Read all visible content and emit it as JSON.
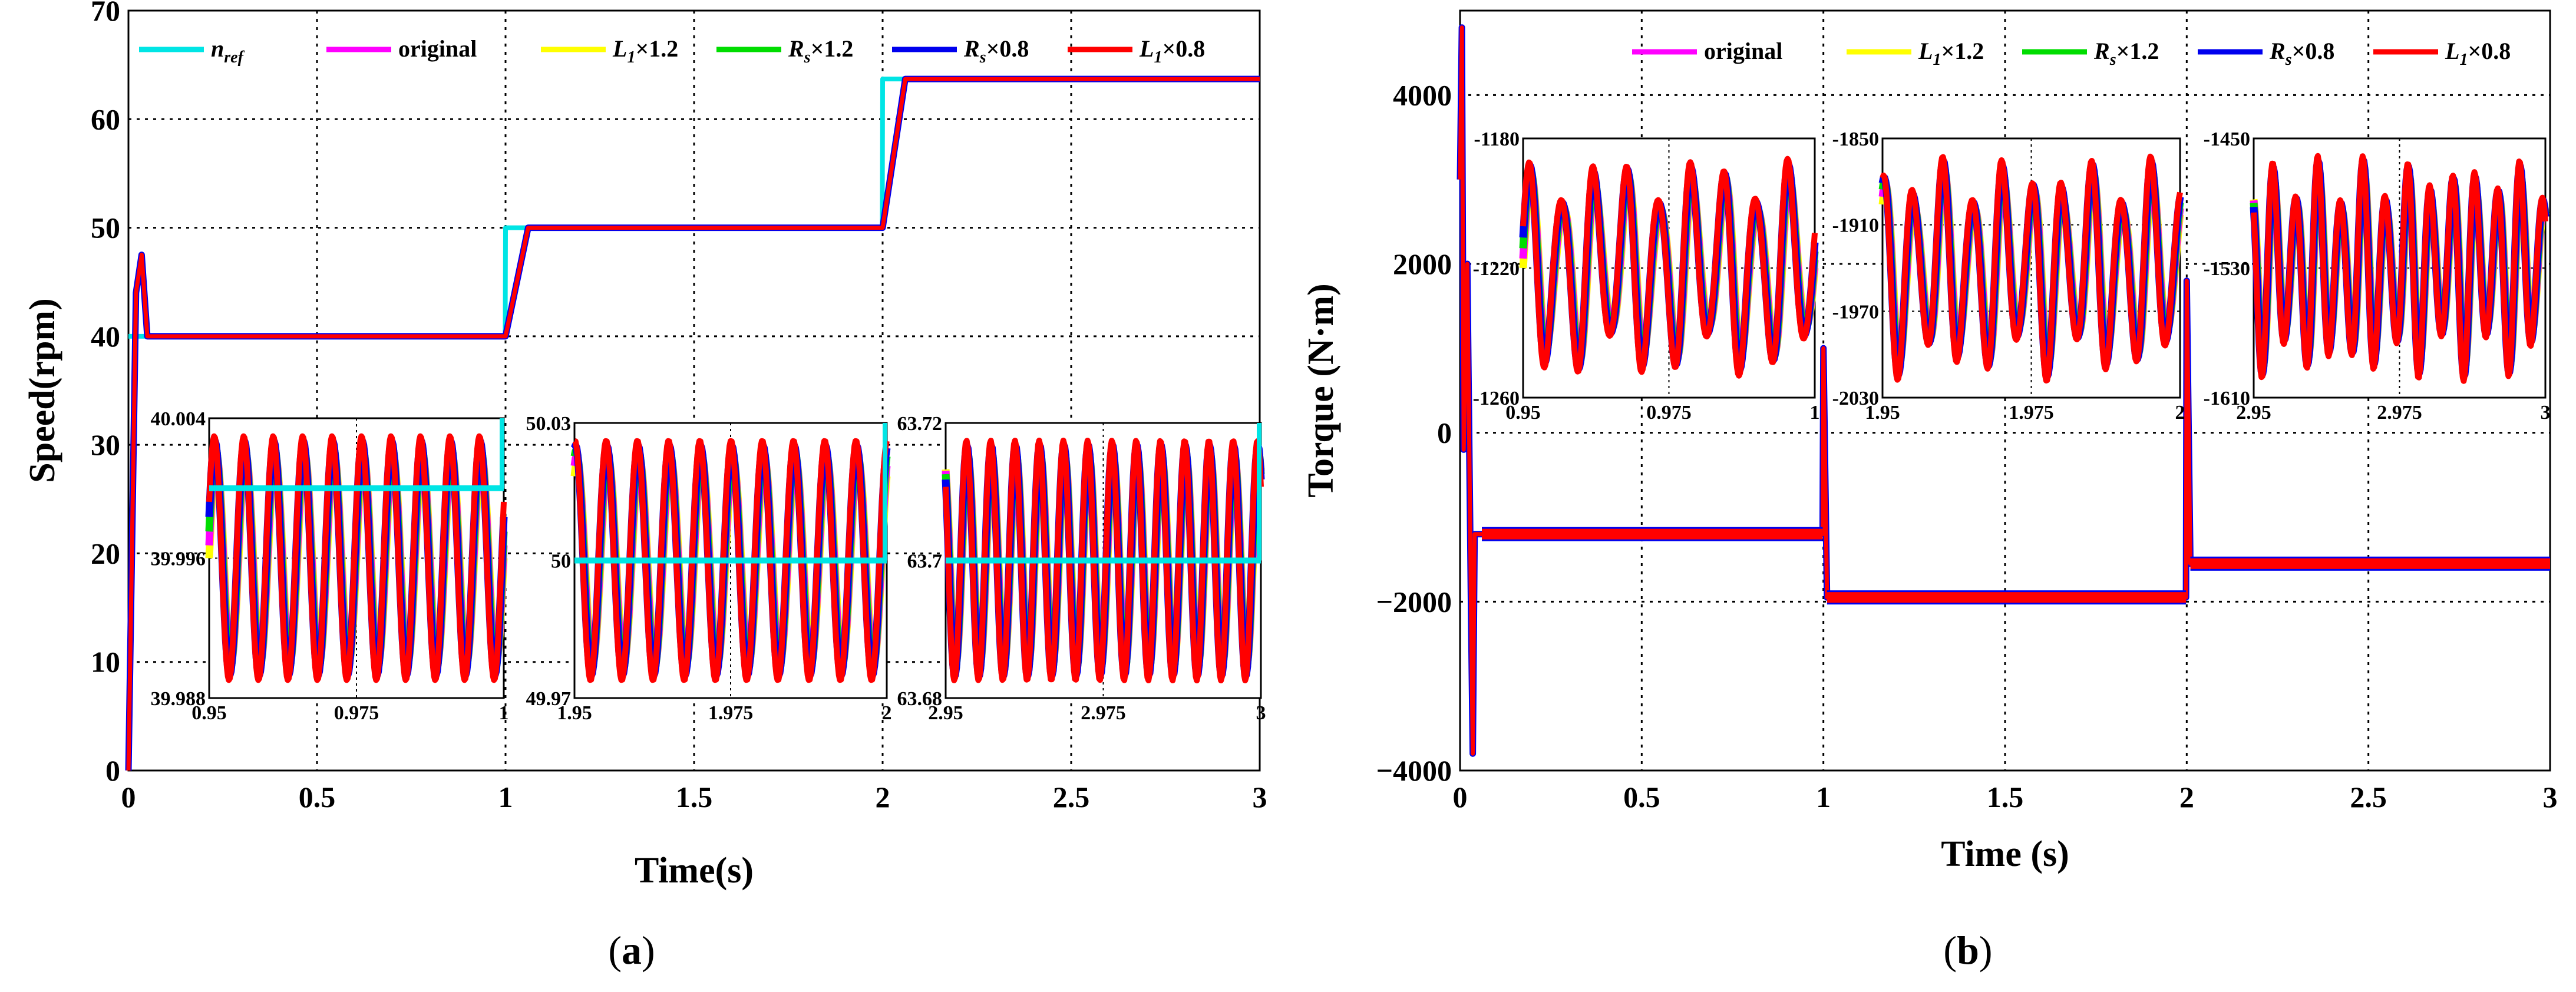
{
  "chart_data": [
    {
      "type": "line",
      "panel": "a",
      "caption_letter": "a",
      "title": "",
      "xlabel": "Time(s)",
      "ylabel": "Speed(rpm)",
      "xlim": [
        0,
        3
      ],
      "ylim": [
        0,
        70
      ],
      "xticks": [
        "0",
        "0.5",
        "1",
        "1.5",
        "2",
        "2.5",
        "3"
      ],
      "yticks": [
        "0",
        "10",
        "20",
        "30",
        "40",
        "50",
        "60",
        "70"
      ],
      "grid": true,
      "legend": [
        {
          "base": "n",
          "sub": "ref",
          "rest": "",
          "color": "#00e5e5"
        },
        {
          "base": "original",
          "sub": "",
          "rest": "",
          "color": "#ff00ff"
        },
        {
          "base": "L",
          "sub": "1",
          "rest": "×1.2",
          "color": "#ffff00"
        },
        {
          "base": "R",
          "sub": "s",
          "rest": "×1.2",
          "color": "#00dd00"
        },
        {
          "base": "R",
          "sub": "s",
          "rest": "×0.8",
          "color": "#0000ee"
        },
        {
          "base": "L",
          "sub": "1",
          "rest": "×0.8",
          "color": "#ff0000"
        }
      ],
      "series": [
        {
          "name": "n_ref",
          "color": "#00e5e5",
          "x": [
            0,
            0.999,
            1.0,
            1.999,
            2.0,
            3.0
          ],
          "values": [
            40,
            40,
            50,
            50,
            63.7,
            63.7
          ]
        },
        {
          "name": "L1×0.8",
          "color": "#ff0000",
          "x": [
            0,
            0.02,
            0.035,
            0.05,
            0.3,
            0.95,
            1.0,
            1.06,
            1.95,
            2.0,
            2.06,
            3.0
          ],
          "values": [
            0,
            44,
            47.5,
            40,
            40,
            40,
            40,
            50,
            50,
            50,
            63.7,
            63.7
          ]
        }
      ],
      "insets": [
        {
          "xticks": [
            "0.95",
            "0.975",
            "1"
          ],
          "yticks": [
            "40.004",
            "39.996",
            "39.988"
          ],
          "xlim": [
            0.95,
            1.0
          ],
          "ylim": [
            39.988,
            40.004
          ],
          "ref_value": 40.0,
          "cycles": 10
        },
        {
          "xticks": [
            "1.95",
            "1.975",
            "2"
          ],
          "yticks": [
            "50.03",
            "50",
            "49.97"
          ],
          "xlim": [
            1.95,
            2.0
          ],
          "ylim": [
            49.97,
            50.03
          ],
          "ref_value": 50.0,
          "cycles": 10
        },
        {
          "xticks": [
            "2.95",
            "2.975",
            "3"
          ],
          "yticks": [
            "63.72",
            "63.7",
            "63.68"
          ],
          "xlim": [
            2.95,
            3.0
          ],
          "ylim": [
            63.68,
            63.72
          ],
          "ref_value": 63.7,
          "cycles": 13
        }
      ]
    },
    {
      "type": "line",
      "panel": "b",
      "caption_letter": "b",
      "title": "",
      "xlabel": "Time (s)",
      "ylabel": "Torque (N·m)",
      "xlim": [
        0,
        3
      ],
      "ylim": [
        -4000,
        5000
      ],
      "xticks": [
        "0",
        "0.5",
        "1",
        "1.5",
        "2",
        "2.5",
        "3"
      ],
      "yticks": [
        "4000",
        "2000",
        "0",
        "−2000",
        "−4000"
      ],
      "grid": true,
      "legend": [
        {
          "base": "original",
          "sub": "",
          "rest": "",
          "color": "#ff00ff"
        },
        {
          "base": "L",
          "sub": "1",
          "rest": "×1.2",
          "color": "#ffff00"
        },
        {
          "base": "R",
          "sub": "s",
          "rest": "×1.2",
          "color": "#00dd00"
        },
        {
          "base": "R",
          "sub": "s",
          "rest": "×0.8",
          "color": "#0000ee"
        },
        {
          "base": "L",
          "sub": "1",
          "rest": "×0.8",
          "color": "#ff0000"
        }
      ],
      "series": [
        {
          "name": "L1×0.8",
          "color": "#ff0000",
          "x": [
            0,
            0.005,
            0.01,
            0.02,
            0.03,
            0.035,
            0.04,
            0.05,
            0.06,
            0.998,
            1.0,
            1.01,
            1.998,
            2.0,
            2.01,
            3.0
          ],
          "values": [
            3000,
            4800,
            -200,
            2000,
            -2000,
            -3800,
            -1200,
            -1200,
            -1200,
            -1200,
            1000,
            -1950,
            -1950,
            1800,
            -1550,
            -1550
          ]
        }
      ],
      "insets": [
        {
          "xticks": [
            "0.95",
            "0.975",
            "1"
          ],
          "yticks": [
            "-1180",
            "-1220",
            "-1260"
          ],
          "xlim": [
            0.95,
            1.0
          ],
          "ylim": [
            -1260,
            -1180
          ],
          "cycles": 9
        },
        {
          "xticks": [
            "1.95",
            "1.975",
            "2"
          ],
          "yticks": [
            "-1850",
            "-1910",
            "-1970",
            "-2030"
          ],
          "xlim": [
            1.95,
            2.0
          ],
          "ylim": [
            -2030,
            -1850
          ],
          "cycles": 10
        },
        {
          "xticks": [
            "2.95",
            "2.975",
            "3"
          ],
          "yticks": [
            "-1450",
            "-1530",
            "-1610"
          ],
          "xlim": [
            2.95,
            3.0
          ],
          "ylim": [
            -1610,
            -1450
          ],
          "cycles": 13
        }
      ]
    }
  ]
}
